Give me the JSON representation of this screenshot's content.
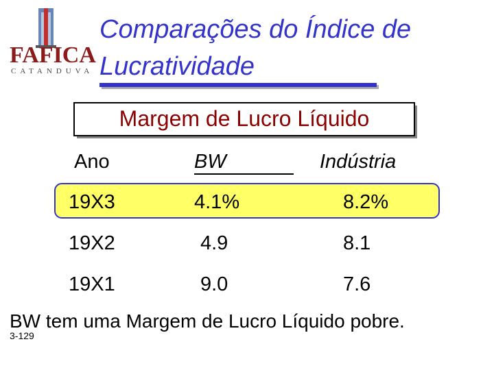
{
  "logo": {
    "name": "FAFICA",
    "city": "CATANDUVA"
  },
  "header": {
    "title_lines": [
      "Comparações do Índice de",
      "Lucratividade"
    ]
  },
  "subtitle": "Margem de Lucro Líquido",
  "table": {
    "columns": [
      "Ano",
      "BW",
      "Indústria"
    ],
    "rows": [
      [
        "19X3",
        "4.1%",
        "8.2%"
      ],
      [
        "19X2",
        "4.9",
        "8.1"
      ],
      [
        "19X1",
        "9.0",
        "7.6"
      ]
    ]
  },
  "note": "BW tem uma Margem de Lucro Líquido pobre.",
  "slide_number": "3-129"
}
